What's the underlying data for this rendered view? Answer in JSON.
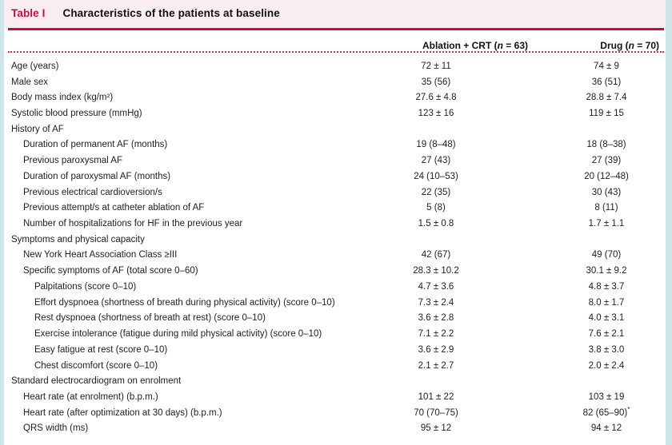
{
  "page": {
    "colors": {
      "accent": "#c60d4c",
      "title_band": "#f9edf0",
      "page_edge": "#cfe6e9",
      "dotted_rule": "#cc3059",
      "text": "#1e1e1e"
    }
  },
  "table": {
    "title_tag": "Table I",
    "title": "Characteristics of the patients at baseline",
    "columns": [
      {
        "pre": "Ablation + CRT (",
        "n": "n",
        "post": " = 63)"
      },
      {
        "pre": "Drug (",
        "n": "n",
        "post": " = 70)"
      }
    ],
    "rows": [
      {
        "label": "Age (years)",
        "indent": 0,
        "v1": "72 ± 11",
        "v2": "74 ± 9"
      },
      {
        "label": "Male sex",
        "indent": 0,
        "v1": "35 (56)",
        "v2": "36 (51)"
      },
      {
        "label": "Body mass index (kg/m²)",
        "indent": 0,
        "v1": "27.6 ± 4.8",
        "v2": "28.8 ± 7.4"
      },
      {
        "label": "Systolic blood pressure (mmHg)",
        "indent": 0,
        "v1": "123 ± 16",
        "v2": "119 ± 15"
      },
      {
        "label": "History of AF",
        "indent": 0,
        "v1": "",
        "v2": ""
      },
      {
        "label": "Duration of permanent AF (months)",
        "indent": 1,
        "v1": "19 (8–48)",
        "v2": "18 (8–38)"
      },
      {
        "label": "Previous paroxysmal AF",
        "indent": 1,
        "v1": "27 (43)",
        "v2": "27 (39)"
      },
      {
        "label": "Duration of paroxysmal AF (months)",
        "indent": 1,
        "v1": "24 (10–53)",
        "v2": "20 (12–48)"
      },
      {
        "label": "Previous electrical cardioversion/s",
        "indent": 1,
        "v1": "22 (35)",
        "v2": "30 (43)"
      },
      {
        "label": "Previous attempt/s at catheter ablation of AF",
        "indent": 1,
        "v1": "5 (8)",
        "v2": "8 (11)"
      },
      {
        "label": "Number of hospitalizations for HF in the previous year",
        "indent": 1,
        "v1": "1.5 ± 0.8",
        "v2": "1.7 ± 1.1"
      },
      {
        "label": "Symptoms and physical capacity",
        "indent": 0,
        "v1": "",
        "v2": ""
      },
      {
        "label": "New York Heart Association Class ≥III",
        "indent": 1,
        "v1": "42 (67)",
        "v2": "49 (70)"
      },
      {
        "label": "Specific symptoms of AF (total score 0–60)",
        "indent": 1,
        "v1": "28.3 ± 10.2",
        "v2": "30.1 ± 9.2"
      },
      {
        "label": "Palpitations (score 0–10)",
        "indent": 2,
        "v1": "4.7 ± 3.6",
        "v2": "4.8 ± 3.7"
      },
      {
        "label": "Effort dyspnoea (shortness of breath during physical activity) (score 0–10)",
        "indent": 2,
        "v1": "7.3 ± 2.4",
        "v2": "8.0 ± 1.7"
      },
      {
        "label": "Rest dyspnoea (shortness of breath at rest) (score 0–10)",
        "indent": 2,
        "v1": "3.6 ± 2.8",
        "v2": "4.0 ± 3.1"
      },
      {
        "label": "Exercise intolerance (fatigue during mild physical activity) (score 0–10)",
        "indent": 2,
        "v1": "7.1 ± 2.2",
        "v2": "7.6 ± 2.1"
      },
      {
        "label": "Easy fatigue at rest (score 0–10)",
        "indent": 2,
        "v1": "3.6 ± 2.9",
        "v2": "3.8 ± 3.0"
      },
      {
        "label": "Chest discomfort (score 0–10)",
        "indent": 2,
        "v1": "2.1 ± 2.7",
        "v2": "2.0 ± 2.4"
      },
      {
        "label": "Standard electrocardiogram on enrolment",
        "indent": 0,
        "v1": "",
        "v2": ""
      },
      {
        "label": "Heart rate (at enrolment) (b.p.m.)",
        "indent": 1,
        "v1": "101 ± 22",
        "v2": "103 ± 19"
      },
      {
        "label": "Heart rate (after optimization at 30 days) (b.p.m.)",
        "indent": 1,
        "v1": "70 (70–75)",
        "v2": "82 (65–90)",
        "v2_sup": "*"
      },
      {
        "label": "QRS width (ms)",
        "indent": 1,
        "v1": "95 ± 12",
        "v2": "94 ± 12"
      }
    ]
  }
}
